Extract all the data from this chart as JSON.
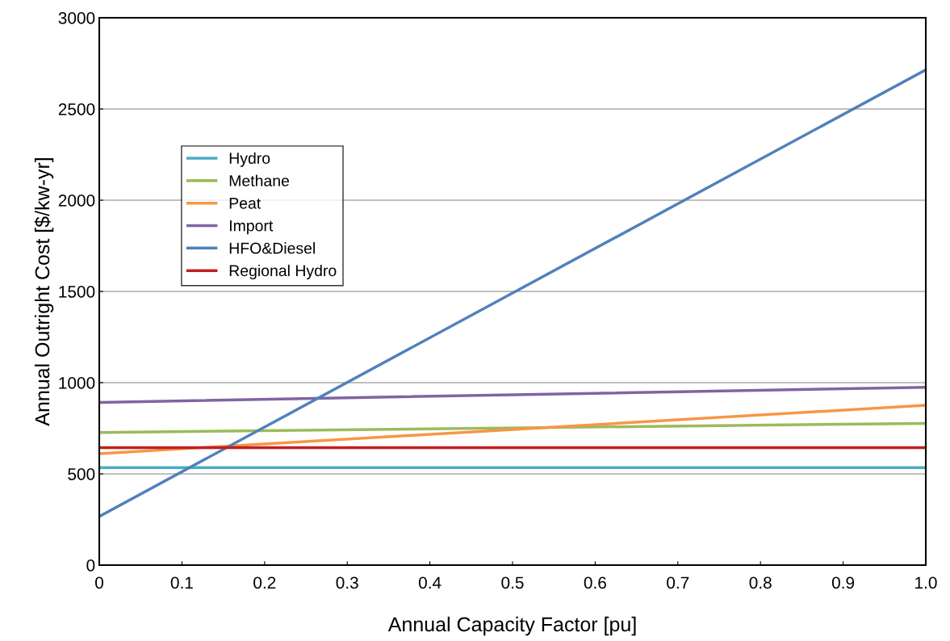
{
  "chart_data": {
    "type": "line",
    "xlabel": "Annual Capacity Factor [pu]",
    "ylabel": "Annual Outright Cost [$/kw-yr]",
    "x": [
      0,
      1
    ],
    "series": [
      {
        "name": "Hydro",
        "color": "#4bacc6",
        "values": [
          534,
          534
        ]
      },
      {
        "name": "Methane",
        "color": "#9bbb59",
        "values": [
          727,
          777
        ]
      },
      {
        "name": "Peat",
        "color": "#f79646",
        "values": [
          611,
          876
        ]
      },
      {
        "name": "Import",
        "color": "#8064a2",
        "values": [
          892,
          975
        ]
      },
      {
        "name": "HFO&Diesel",
        "color": "#4f81bd",
        "values": [
          267,
          2715
        ]
      },
      {
        "name": "Regional Hydro",
        "color": "#c0201f",
        "values": [
          644,
          644
        ]
      }
    ],
    "xlim": [
      0,
      1
    ],
    "xticks": [
      0,
      0.1,
      0.2,
      0.3,
      0.4,
      0.5,
      0.6,
      0.7,
      0.8,
      0.9,
      {
        "value": 1,
        "label": "1.0"
      }
    ],
    "ylim": [
      0,
      3000
    ],
    "yticks": [
      0,
      500,
      1000,
      1500,
      2000,
      2500,
      3000
    ],
    "grid": "y",
    "legend": "top left",
    "marker": "none",
    "line_style": "solid"
  }
}
